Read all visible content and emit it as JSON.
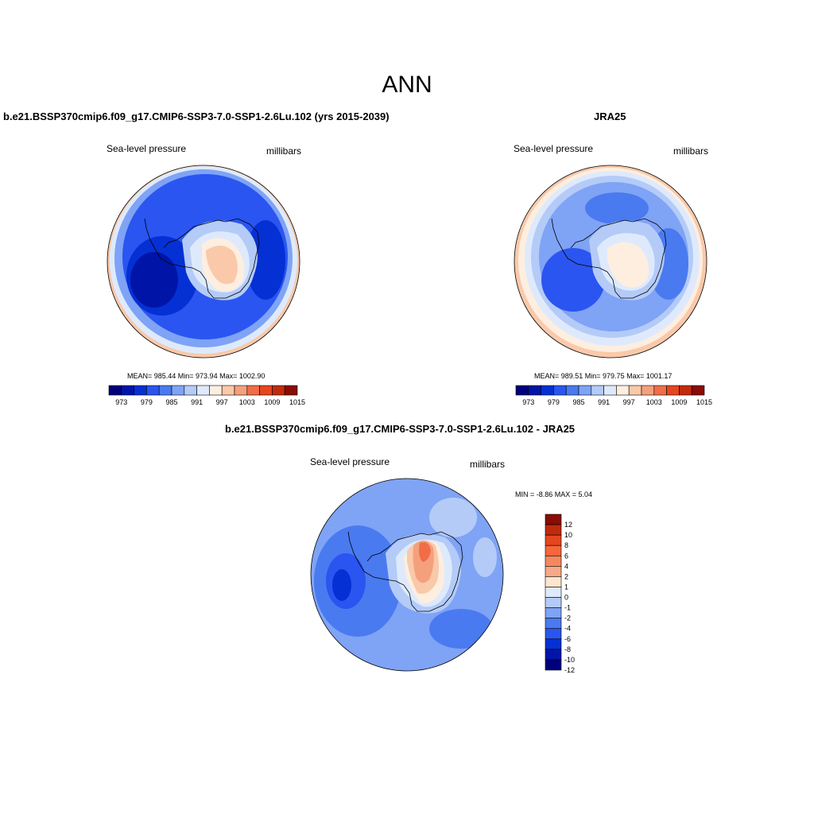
{
  "title": "ANN",
  "panels": [
    {
      "heading": "b.e21.BSSP370cmip6.f09_g17.CMIP6-SSP3-7.0-SSP1-2.6Lu.102 (yrs 2015-2039)",
      "left_label": "Sea-level pressure",
      "right_label": "millibars",
      "stats": "MEAN= 985.44  Min= 973.94  Max= 1002.90"
    },
    {
      "heading": "JRA25",
      "left_label": "Sea-level pressure",
      "right_label": "millibars",
      "stats": "MEAN= 989.51  Min= 979.75  Max= 1001.17"
    },
    {
      "heading": "b.e21.BSSP370cmip6.f09_g17.CMIP6-SSP3-7.0-SSP1-2.6Lu.102 - JRA25",
      "left_label": "Sea-level pressure",
      "right_label": "millibars",
      "stats": "MIN =  -8.86 MAX =   5.04"
    }
  ],
  "abs_colorbar": {
    "colors": [
      "#00007f",
      "#0015a8",
      "#0530d4",
      "#2a55f0",
      "#4a7af0",
      "#7fa3f5",
      "#b4cbf8",
      "#deeafc",
      "#fdeee0",
      "#f9c9aa",
      "#f5a07d",
      "#f16d48",
      "#e6461e",
      "#c22b0c",
      "#8a0c05"
    ],
    "labels": [
      "973",
      "979",
      "985",
      "991",
      "997",
      "1003",
      "1009",
      "1015"
    ]
  },
  "diff_colorbar": {
    "colors": [
      "#8a0c05",
      "#bf2a0c",
      "#e6461e",
      "#f5663a",
      "#f5875f",
      "#f7a888",
      "#fde6cf",
      "#deeafc",
      "#b4cbf8",
      "#7fa3f5",
      "#4a7af0",
      "#2a55f0",
      "#0530d4",
      "#0015a8",
      "#00007f"
    ],
    "labels": [
      "12",
      "10",
      "8",
      "6",
      "4",
      "2",
      "1",
      "0",
      "-1",
      "-2",
      "-4",
      "-6",
      "-8",
      "-10",
      "-12"
    ]
  }
}
